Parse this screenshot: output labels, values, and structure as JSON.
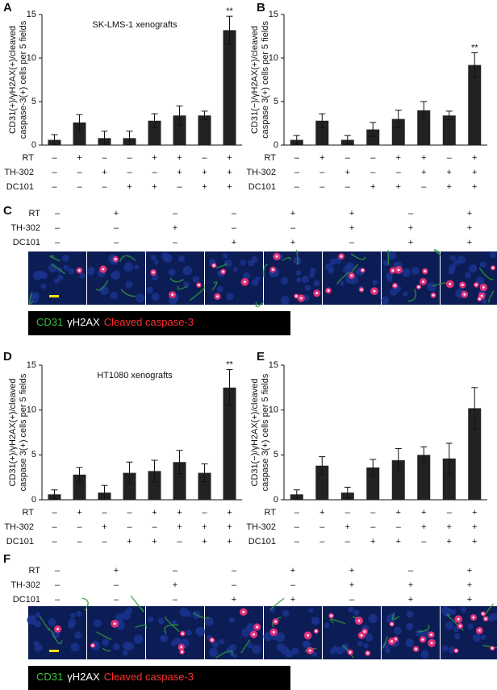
{
  "chart_data": [
    {
      "type": "bar",
      "panel": "A",
      "title": "SK-LMS-1 xenografts",
      "ylabel": [
        "CD31(+)/γH2AX(+)/cleaved",
        "caspase-3(+) cells per 5 fields"
      ],
      "values": [
        0.6,
        2.6,
        0.8,
        0.8,
        2.8,
        3.4,
        3.4,
        13.2
      ],
      "errors": [
        0.6,
        0.9,
        0.8,
        0.8,
        0.8,
        1.1,
        0.5,
        1.6
      ],
      "significance": [
        null,
        null,
        null,
        null,
        null,
        null,
        null,
        "**"
      ],
      "color": "#222222",
      "ylim": [
        0,
        15
      ],
      "yticks": [
        0,
        5,
        10,
        15
      ],
      "conditions": [
        {
          "name": "RT",
          "signs": [
            "–",
            "+",
            "–",
            "–",
            "+",
            "+",
            "–",
            "+"
          ]
        },
        {
          "name": "TH-302",
          "signs": [
            "–",
            "–",
            "+",
            "–",
            "–",
            "+",
            "+",
            "+"
          ]
        },
        {
          "name": "DC101",
          "signs": [
            "–",
            "–",
            "–",
            "+",
            "+",
            "–",
            "+",
            "+"
          ]
        }
      ]
    },
    {
      "type": "bar",
      "panel": "B",
      "ylabel": [
        "CD31(−)/γH2AX(+)/cleaved",
        "caspase 3(+) cells per 5 fields"
      ],
      "values": [
        0.6,
        2.8,
        0.6,
        1.8,
        3.0,
        4.0,
        3.4,
        9.2
      ],
      "errors": [
        0.5,
        0.8,
        0.5,
        0.8,
        1.0,
        1.0,
        0.5,
        1.4
      ],
      "significance": [
        null,
        null,
        null,
        null,
        null,
        null,
        null,
        "**"
      ],
      "color": "#222222",
      "ylim": [
        0,
        15
      ],
      "yticks": [
        0,
        5,
        10,
        15
      ],
      "conditions": [
        {
          "name": "RT",
          "signs": [
            "–",
            "+",
            "–",
            "–",
            "+",
            "+",
            "–",
            "+"
          ]
        },
        {
          "name": "TH-302",
          "signs": [
            "–",
            "–",
            "+",
            "–",
            "–",
            "+",
            "+",
            "+"
          ]
        },
        {
          "name": "DC101",
          "signs": [
            "–",
            "–",
            "–",
            "+",
            "+",
            "–",
            "+",
            "+"
          ]
        }
      ]
    },
    {
      "type": "bar",
      "panel": "D",
      "title": "HT1080 xenografts",
      "ylabel": [
        "CD31(+)/γH2AX(+)/cleaved",
        "caspase 3(+) cells per 5 fields"
      ],
      "values": [
        0.6,
        2.8,
        0.8,
        3.0,
        3.2,
        4.2,
        3.0,
        12.5
      ],
      "errors": [
        0.5,
        0.8,
        0.8,
        1.2,
        1.2,
        1.3,
        1.0,
        2.0
      ],
      "significance": [
        null,
        null,
        null,
        null,
        null,
        null,
        null,
        "**"
      ],
      "color": "#222222",
      "ylim": [
        0,
        15
      ],
      "yticks": [
        0,
        5,
        10,
        15
      ],
      "conditions": [
        {
          "name": "RT",
          "signs": [
            "–",
            "+",
            "–",
            "–",
            "+",
            "+",
            "–",
            "+"
          ]
        },
        {
          "name": "TH-302",
          "signs": [
            "–",
            "–",
            "+",
            "–",
            "–",
            "+",
            "+",
            "+"
          ]
        },
        {
          "name": "DC101",
          "signs": [
            "–",
            "–",
            "–",
            "+",
            "+",
            "–",
            "+",
            "+"
          ]
        }
      ]
    },
    {
      "type": "bar",
      "panel": "E",
      "ylabel": [
        "CD31(−)/γH2AX(+)/cleaved",
        "caspase 3(+) cells per 5 fields"
      ],
      "values": [
        0.6,
        3.8,
        0.8,
        3.6,
        4.4,
        5.0,
        4.6,
        10.2
      ],
      "errors": [
        0.5,
        1.0,
        0.6,
        0.9,
        1.3,
        0.9,
        1.7,
        2.3
      ],
      "color": "#222222",
      "ylim": [
        0,
        15
      ],
      "yticks": [
        0,
        5,
        10,
        15
      ],
      "conditions": [
        {
          "name": "RT",
          "signs": [
            "–",
            "+",
            "–",
            "–",
            "+",
            "+",
            "–",
            "+"
          ]
        },
        {
          "name": "TH-302",
          "signs": [
            "–",
            "–",
            "+",
            "–",
            "–",
            "+",
            "+",
            "+"
          ]
        },
        {
          "name": "DC101",
          "signs": [
            "–",
            "–",
            "–",
            "+",
            "+",
            "–",
            "+",
            "+"
          ]
        }
      ]
    }
  ],
  "image_panels": [
    {
      "panel": "C",
      "conditions": [
        {
          "name": "RT",
          "signs": [
            "–",
            "+",
            "–",
            "–",
            "+",
            "+",
            "–",
            "+"
          ]
        },
        {
          "name": "TH-302",
          "signs": [
            "–",
            "–",
            "+",
            "–",
            "–",
            "+",
            "+",
            "+"
          ]
        },
        {
          "name": "DC101",
          "signs": [
            "–",
            "–",
            "–",
            "+",
            "+",
            "–",
            "+",
            "+"
          ]
        }
      ],
      "legend": [
        {
          "text": "CD31",
          "color": "#3fbf3f"
        },
        {
          "text": "γH2AX",
          "color": "#ffffff"
        },
        {
          "text": "Cleaved caspase-3",
          "color": "#ff3030"
        }
      ]
    },
    {
      "panel": "F",
      "conditions": [
        {
          "name": "RT",
          "signs": [
            "–",
            "+",
            "–",
            "–",
            "+",
            "+",
            "–",
            "+"
          ]
        },
        {
          "name": "TH-302",
          "signs": [
            "–",
            "–",
            "+",
            "–",
            "–",
            "+",
            "+",
            "+"
          ]
        },
        {
          "name": "DC101",
          "signs": [
            "–",
            "–",
            "–",
            "+",
            "+",
            "–",
            "+",
            "+"
          ]
        }
      ],
      "legend": [
        {
          "text": "CD31",
          "color": "#3fbf3f"
        },
        {
          "text": "γH2AX",
          "color": "#ffffff"
        },
        {
          "text": "Cleaved caspase-3",
          "color": "#ff3030"
        }
      ]
    }
  ]
}
